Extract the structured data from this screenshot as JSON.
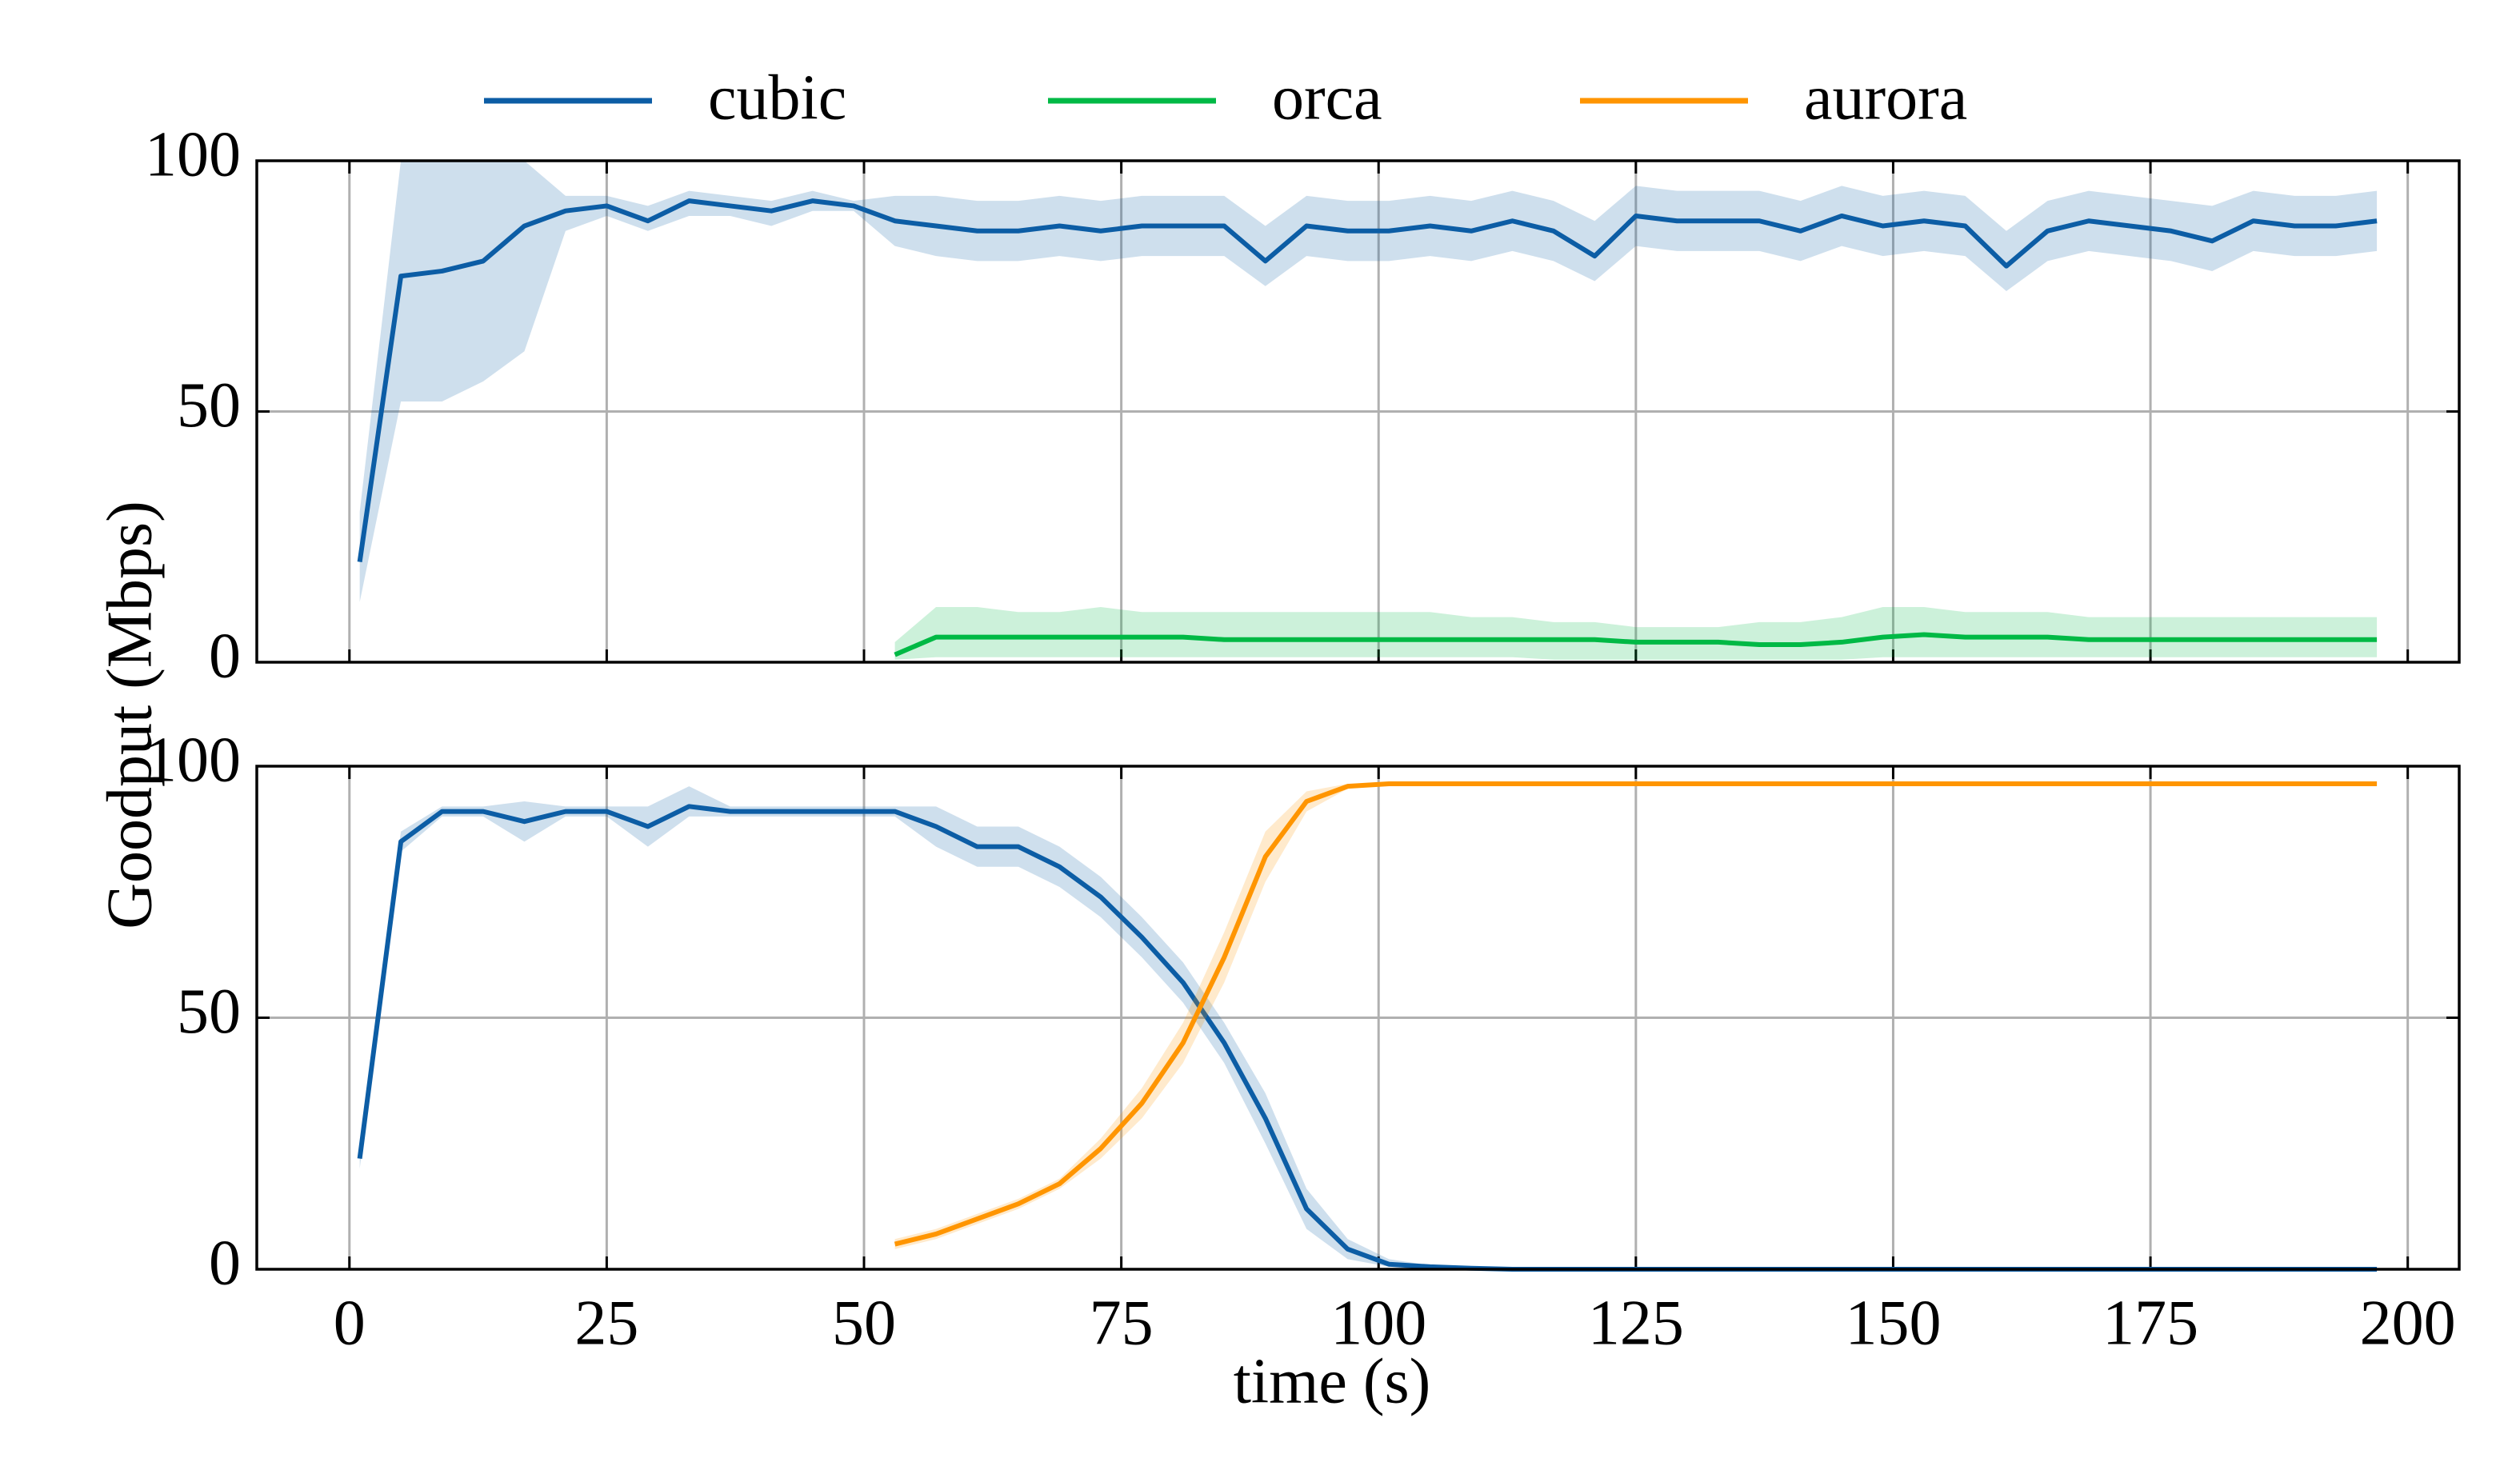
{
  "chart_data": [
    {
      "type": "line",
      "ylabel": "Goodput (Mbps)",
      "x": [
        1,
        5,
        9,
        13,
        17,
        21,
        25,
        29,
        33,
        37,
        41,
        45,
        49,
        53,
        57,
        61,
        65,
        69,
        73,
        77,
        81,
        85,
        89,
        93,
        97,
        101,
        105,
        109,
        113,
        117,
        121,
        125,
        129,
        133,
        137,
        141,
        145,
        149,
        153,
        157,
        161,
        165,
        169,
        173,
        177,
        181,
        185,
        189,
        193,
        197
      ],
      "xlim": [
        -9,
        205
      ],
      "xticks": [
        0,
        25,
        50,
        75,
        100,
        125,
        150,
        175,
        200
      ],
      "ylim": [
        0,
        100
      ],
      "yticks": [
        0,
        50,
        100
      ],
      "grid": true,
      "series": [
        {
          "name": "cubic",
          "color": "#0c5da5",
          "values": [
            20,
            77,
            78,
            80,
            87,
            90,
            91,
            88,
            92,
            91,
            90,
            92,
            91,
            88,
            87,
            86,
            86,
            87,
            86,
            87,
            87,
            87,
            80,
            87,
            86,
            86,
            87,
            86,
            88,
            86,
            81,
            89,
            88,
            88,
            88,
            86,
            89,
            87,
            88,
            87,
            79,
            86,
            88,
            87,
            86,
            84,
            88,
            87,
            87,
            88
          ],
          "lower": [
            12,
            52,
            52,
            56,
            62,
            86,
            89,
            86,
            89,
            89,
            87,
            90,
            90,
            83,
            81,
            80,
            80,
            81,
            80,
            81,
            81,
            81,
            75,
            81,
            80,
            80,
            81,
            80,
            82,
            80,
            76,
            83,
            82,
            82,
            82,
            80,
            83,
            81,
            82,
            81,
            74,
            80,
            82,
            81,
            80,
            78,
            82,
            81,
            81,
            82
          ],
          "upper": [
            30,
            100,
            100,
            100,
            100,
            93,
            93,
            91,
            94,
            93,
            92,
            94,
            92,
            93,
            93,
            92,
            92,
            93,
            92,
            93,
            93,
            93,
            87,
            93,
            92,
            92,
            93,
            92,
            94,
            92,
            88,
            95,
            94,
            94,
            94,
            92,
            95,
            93,
            94,
            93,
            86,
            92,
            94,
            93,
            92,
            91,
            94,
            93,
            93,
            94
          ]
        },
        {
          "name": "orca",
          "color": "#00b945",
          "values": [
            null,
            null,
            null,
            null,
            null,
            null,
            null,
            null,
            null,
            null,
            null,
            null,
            null,
            1.5,
            5,
            5,
            5,
            5,
            5,
            5,
            5,
            4.5,
            4.5,
            4.5,
            4.5,
            4.5,
            4.5,
            4.5,
            4.5,
            4.5,
            4.5,
            4,
            4,
            4,
            3.5,
            3.5,
            4,
            5,
            5.5,
            5,
            5,
            5,
            4.5,
            4.5,
            4.5,
            4.5,
            4.5,
            4.5,
            4.5,
            4.5
          ],
          "lower": [
            null,
            null,
            null,
            null,
            null,
            null,
            null,
            null,
            null,
            null,
            null,
            null,
            null,
            0.5,
            1,
            1,
            1,
            1,
            1,
            1,
            1,
            1,
            1,
            1,
            1,
            1,
            1,
            1,
            1,
            0.5,
            0.5,
            0.5,
            0.5,
            0.5,
            0.5,
            0.5,
            0.5,
            1,
            1,
            1,
            1,
            1,
            1,
            1,
            1,
            1,
            1,
            1,
            1,
            1
          ],
          "upper": [
            null,
            null,
            null,
            null,
            null,
            null,
            null,
            null,
            null,
            null,
            null,
            null,
            null,
            4,
            11,
            11,
            10,
            10,
            11,
            10,
            10,
            10,
            10,
            10,
            10,
            10,
            10,
            9,
            9,
            8,
            8,
            7,
            7,
            7,
            8,
            8,
            9,
            11,
            11,
            10,
            10,
            10,
            9,
            9,
            9,
            9,
            9,
            9,
            9,
            9
          ]
        }
      ]
    },
    {
      "type": "line",
      "xlabel": "time (s)",
      "x": [
        1,
        5,
        9,
        13,
        17,
        21,
        25,
        29,
        33,
        37,
        41,
        45,
        49,
        53,
        57,
        61,
        65,
        69,
        73,
        77,
        81,
        85,
        89,
        93,
        97,
        101,
        105,
        109,
        113,
        117,
        121,
        125,
        129,
        133,
        137,
        141,
        145,
        149,
        153,
        157,
        161,
        165,
        169,
        173,
        177,
        181,
        185,
        189,
        193,
        197
      ],
      "xlim": [
        -9,
        205
      ],
      "xticks": [
        0,
        25,
        50,
        75,
        100,
        125,
        150,
        175,
        200
      ],
      "ylim": [
        0,
        100
      ],
      "yticks": [
        0,
        50,
        100
      ],
      "grid": true,
      "series": [
        {
          "name": "cubic",
          "color": "#0c5da5",
          "values": [
            22,
            85,
            91,
            91,
            89,
            91,
            91,
            88,
            92,
            91,
            91,
            91,
            91,
            91,
            88,
            84,
            84,
            80,
            74,
            66,
            57,
            45,
            30,
            12,
            4,
            1,
            0.5,
            0.2,
            0,
            0,
            0,
            0,
            0,
            0,
            0,
            0,
            0,
            0,
            0,
            0,
            0,
            0,
            0,
            0,
            0,
            0,
            0,
            0,
            0,
            0
          ],
          "lower": [
            20,
            83,
            90,
            90,
            85,
            90,
            90,
            84,
            90,
            90,
            90,
            90,
            90,
            90,
            84,
            80,
            80,
            76,
            70,
            62,
            53,
            41,
            25,
            8,
            2,
            0.5,
            0.2,
            0,
            0,
            0,
            0,
            0,
            0,
            0,
            0,
            0,
            0,
            0,
            0,
            0,
            0,
            0,
            0,
            0,
            0,
            0,
            0,
            0,
            0,
            0
          ],
          "upper": [
            24,
            87,
            92,
            92,
            93,
            92,
            92,
            92,
            96,
            92,
            92,
            92,
            92,
            92,
            92,
            88,
            88,
            84,
            78,
            70,
            61,
            49,
            35,
            16,
            6,
            2,
            0.8,
            0.4,
            0,
            0,
            0,
            0,
            0,
            0,
            0,
            0,
            0,
            0,
            0,
            0,
            0,
            0,
            0,
            0,
            0,
            0,
            0,
            0,
            0,
            0
          ]
        },
        {
          "name": "aurora",
          "color": "#ff9500",
          "values": [
            null,
            null,
            null,
            null,
            null,
            null,
            null,
            null,
            null,
            null,
            null,
            null,
            null,
            5,
            7,
            10,
            13,
            17,
            24,
            33,
            45,
            62,
            82,
            93,
            96,
            96.5,
            96.5,
            96.5,
            96.5,
            96.5,
            96.5,
            96.5,
            96.5,
            96.5,
            96.5,
            96.5,
            96.5,
            96.5,
            96.5,
            96.5,
            96.5,
            96.5,
            96.5,
            96.5,
            96.5,
            96.5,
            96.5,
            96.5,
            96.5,
            96.5
          ],
          "lower": [
            null,
            null,
            null,
            null,
            null,
            null,
            null,
            null,
            null,
            null,
            null,
            null,
            null,
            4,
            6,
            9,
            12,
            16,
            22,
            30,
            41,
            57,
            77,
            91,
            95.5,
            96.3,
            96.3,
            96.3,
            96.3,
            96.3,
            96.3,
            96.3,
            96.3,
            96.3,
            96.3,
            96.3,
            96.3,
            96.3,
            96.3,
            96.3,
            96.3,
            96.3,
            96.3,
            96.3,
            96.3,
            96.3,
            96.3,
            96.3,
            96.3,
            96.3
          ],
          "upper": [
            null,
            null,
            null,
            null,
            null,
            null,
            null,
            null,
            null,
            null,
            null,
            null,
            null,
            6,
            8,
            11,
            14,
            18,
            26,
            36,
            49,
            67,
            87,
            95,
            96.5,
            96.7,
            96.7,
            96.7,
            96.7,
            96.7,
            96.7,
            96.7,
            96.7,
            96.7,
            96.7,
            96.7,
            96.7,
            96.7,
            96.7,
            96.7,
            96.7,
            96.7,
            96.7,
            96.7,
            96.7,
            96.7,
            96.7,
            96.7,
            96.7,
            96.7
          ]
        }
      ]
    }
  ]
}
